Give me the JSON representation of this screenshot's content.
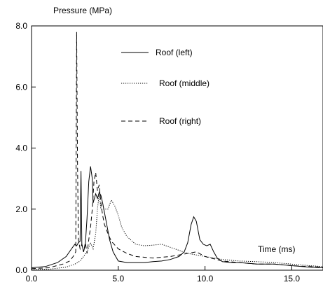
{
  "chart_data": {
    "type": "line",
    "title": "",
    "ylabel": "Pressure (MPa)",
    "xlabel": "Time (ms)",
    "xlim": [
      0.0,
      16.8
    ],
    "ylim": [
      0.0,
      8.0
    ],
    "x_ticks": [
      "0.0",
      "5.0",
      "10.0",
      "15.0"
    ],
    "x_tick_values": [
      0,
      5,
      10,
      15
    ],
    "y_ticks": [
      "0.0",
      "2.0",
      "4.0",
      "6.0",
      "8.0"
    ],
    "y_tick_values": [
      0,
      2,
      4,
      6,
      8
    ],
    "grid": false,
    "legend_position": "top-right",
    "series": [
      {
        "name": "Roof (left)",
        "line_style": "solid",
        "x": [
          0.0,
          0.8,
          1.5,
          2.0,
          2.3,
          2.5,
          2.6,
          2.7,
          2.8,
          2.85,
          2.9,
          3.0,
          3.1,
          3.2,
          3.3,
          3.4,
          3.5,
          3.55,
          3.6,
          3.7,
          3.8,
          3.9,
          4.0,
          4.1,
          4.2,
          4.3,
          4.5,
          4.7,
          5.0,
          5.5,
          6.0,
          6.5,
          7.0,
          7.5,
          8.0,
          8.5,
          8.8,
          9.0,
          9.2,
          9.35,
          9.5,
          9.7,
          9.9,
          10.1,
          10.3,
          10.5,
          10.7,
          11.0,
          11.5,
          12.0,
          13.0,
          14.0,
          15.0,
          16.0,
          16.8
        ],
        "y": [
          0.08,
          0.12,
          0.25,
          0.45,
          0.7,
          0.85,
          0.8,
          0.9,
          0.95,
          3.25,
          0.85,
          0.6,
          0.85,
          1.7,
          2.9,
          3.4,
          3.0,
          2.2,
          2.3,
          2.5,
          2.35,
          2.55,
          2.45,
          2.2,
          1.9,
          1.6,
          1.0,
          0.6,
          0.3,
          0.25,
          0.25,
          0.25,
          0.28,
          0.3,
          0.35,
          0.45,
          0.6,
          0.9,
          1.5,
          1.75,
          1.6,
          1.0,
          0.85,
          0.8,
          0.85,
          0.6,
          0.4,
          0.28,
          0.25,
          0.25,
          0.2,
          0.2,
          0.15,
          0.1,
          0.08
        ]
      },
      {
        "name": "Roof (middle)",
        "line_style": "dotted",
        "x": [
          0.0,
          1.0,
          2.0,
          2.5,
          2.8,
          3.0,
          3.2,
          3.4,
          3.55,
          3.7,
          3.8,
          3.9,
          4.0,
          4.2,
          4.4,
          4.6,
          4.8,
          5.0,
          5.2,
          5.5,
          6.0,
          6.5,
          7.0,
          7.5,
          8.0,
          8.5,
          9.0,
          9.5,
          10.0,
          11.0,
          12.0,
          13.0,
          14.0,
          15.0,
          16.0,
          16.8
        ],
        "y": [
          0.02,
          0.03,
          0.1,
          0.2,
          0.3,
          0.45,
          0.6,
          0.9,
          0.7,
          1.2,
          2.0,
          2.5,
          2.0,
          2.0,
          2.0,
          2.3,
          2.1,
          1.8,
          1.4,
          1.1,
          0.85,
          0.8,
          0.82,
          0.85,
          0.75,
          0.65,
          0.55,
          0.5,
          0.45,
          0.35,
          0.3,
          0.28,
          0.25,
          0.2,
          0.15,
          0.12
        ]
      },
      {
        "name": "Roof (right)",
        "line_style": "dashed",
        "x": [
          0.0,
          1.0,
          1.8,
          2.2,
          2.4,
          2.55,
          2.6,
          2.65,
          2.7,
          2.8,
          2.9,
          3.0,
          3.1,
          3.2,
          3.3,
          3.4,
          3.5,
          3.6,
          3.7,
          3.8,
          3.9,
          4.0,
          4.1,
          4.2,
          4.4,
          4.6,
          5.0,
          5.5,
          6.0,
          7.0,
          8.0,
          8.5,
          9.0,
          9.5,
          10.0,
          11.0,
          12.0,
          13.0,
          14.0,
          15.0,
          16.0,
          16.8
        ],
        "y": [
          0.05,
          0.08,
          0.2,
          0.3,
          0.45,
          0.6,
          7.8,
          3.6,
          1.0,
          0.7,
          0.85,
          0.6,
          0.9,
          0.55,
          1.0,
          1.4,
          2.0,
          2.9,
          3.2,
          2.6,
          2.8,
          2.2,
          1.8,
          1.5,
          1.2,
          0.95,
          0.7,
          0.55,
          0.45,
          0.4,
          0.45,
          0.5,
          0.55,
          0.6,
          0.45,
          0.3,
          0.25,
          0.2,
          0.2,
          0.15,
          0.12,
          0.1
        ]
      }
    ]
  }
}
